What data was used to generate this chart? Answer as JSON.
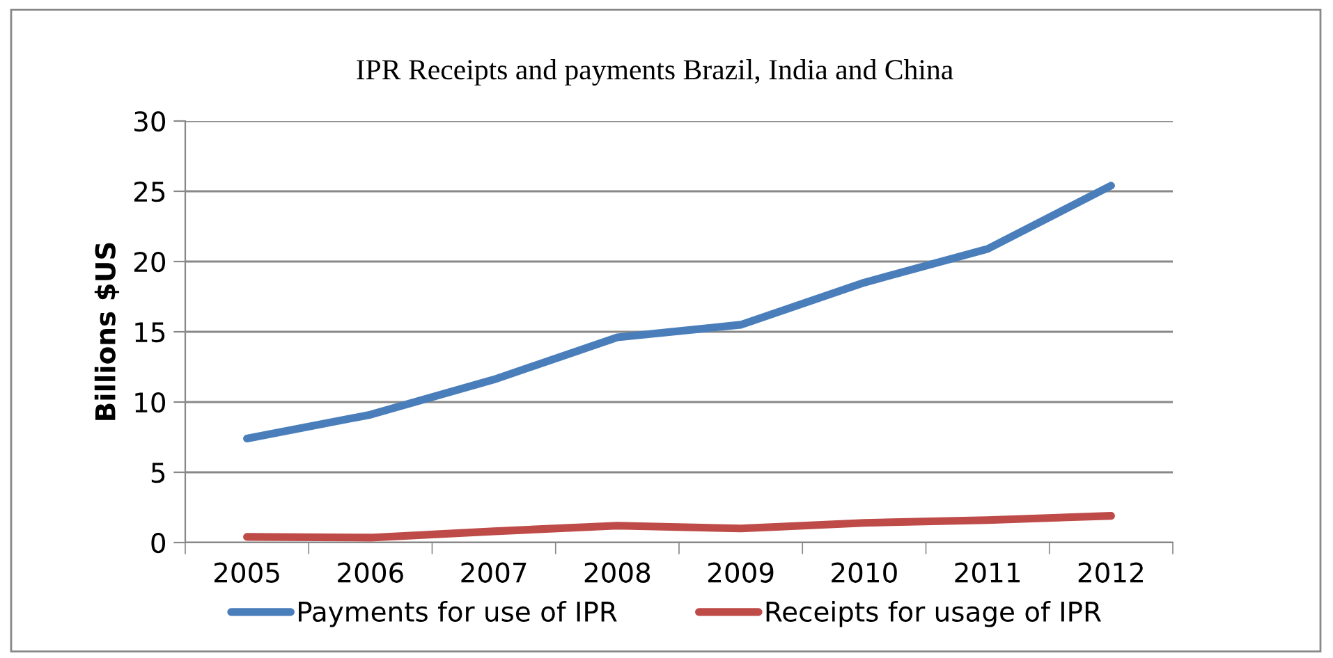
{
  "chart_data": {
    "type": "line",
    "title": "IPR Receipts and payments Brazil, India and China",
    "ylabel": "Billions $US",
    "categories": [
      "2005",
      "2006",
      "2007",
      "2008",
      "2009",
      "2010",
      "2011",
      "2012"
    ],
    "series": [
      {
        "name": "Payments for use of IPR",
        "color": "#4a7ebb",
        "values": [
          7.4,
          9.1,
          11.6,
          14.6,
          15.5,
          18.5,
          20.9,
          25.4
        ]
      },
      {
        "name": "Receipts for usage of IPR",
        "color": "#be4b48",
        "values": [
          0.4,
          0.35,
          0.8,
          1.2,
          1.0,
          1.4,
          1.6,
          1.9
        ]
      }
    ],
    "ylim": [
      0,
      30
    ],
    "yticks": [
      0,
      5,
      10,
      15,
      20,
      25,
      30
    ],
    "grid": "y",
    "legend": "bottom",
    "marker": "none",
    "line_style": "solid"
  }
}
